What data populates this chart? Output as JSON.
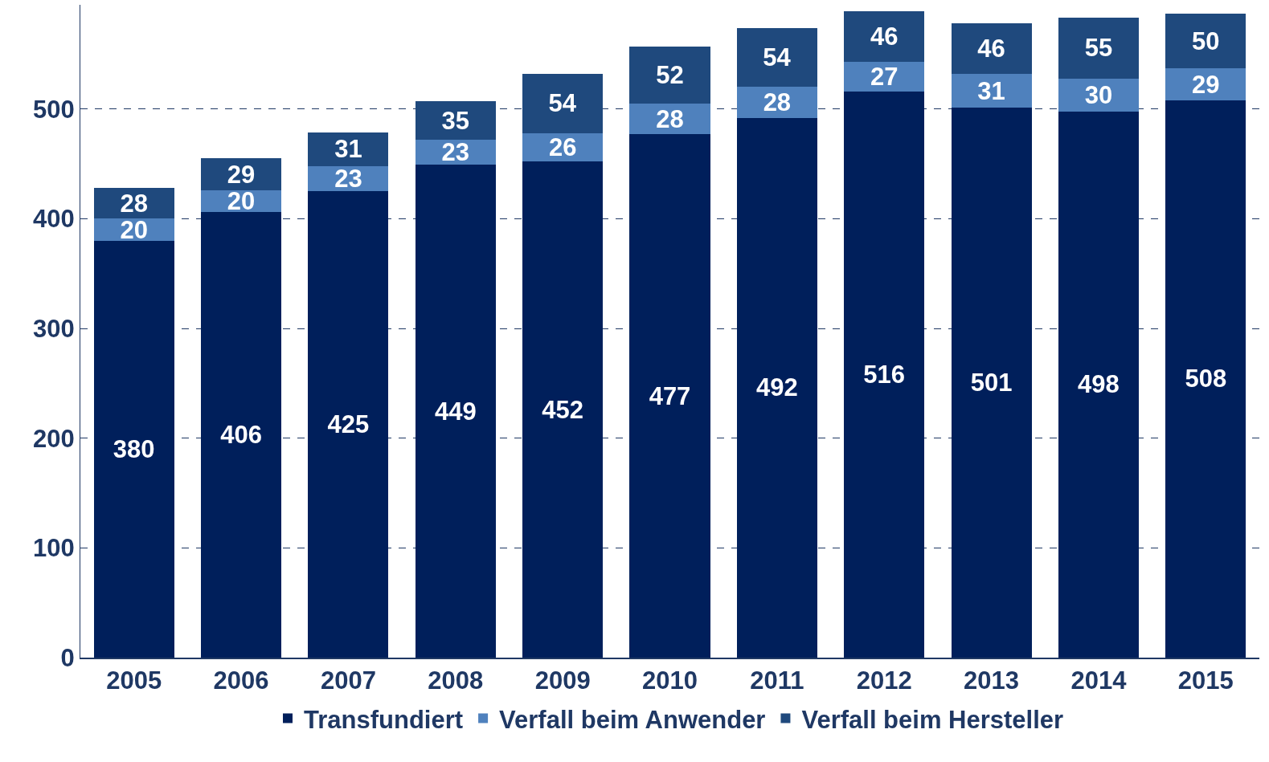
{
  "chart_data": {
    "type": "bar",
    "stacked": true,
    "categories": [
      "2005",
      "2006",
      "2007",
      "2008",
      "2009",
      "2010",
      "2011",
      "2012",
      "2013",
      "2014",
      "2015"
    ],
    "series": [
      {
        "name": "Transfundiert",
        "color": "#001f5b",
        "values": [
          380,
          406,
          425,
          449,
          452,
          477,
          492,
          516,
          501,
          498,
          508
        ]
      },
      {
        "name": "Verfall beim Anwender",
        "color": "#4f81bd",
        "values": [
          20,
          20,
          23,
          23,
          26,
          28,
          28,
          27,
          31,
          30,
          29
        ]
      },
      {
        "name": "Verfall beim Hersteller",
        "color": "#1f497d",
        "values": [
          28,
          29,
          31,
          35,
          54,
          52,
          54,
          46,
          46,
          55,
          50
        ]
      }
    ],
    "ylim": [
      0,
      595
    ],
    "yticks": [
      0,
      100,
      200,
      300,
      400,
      500
    ],
    "grid": "y",
    "legend": "bottom",
    "data_labels": true
  }
}
